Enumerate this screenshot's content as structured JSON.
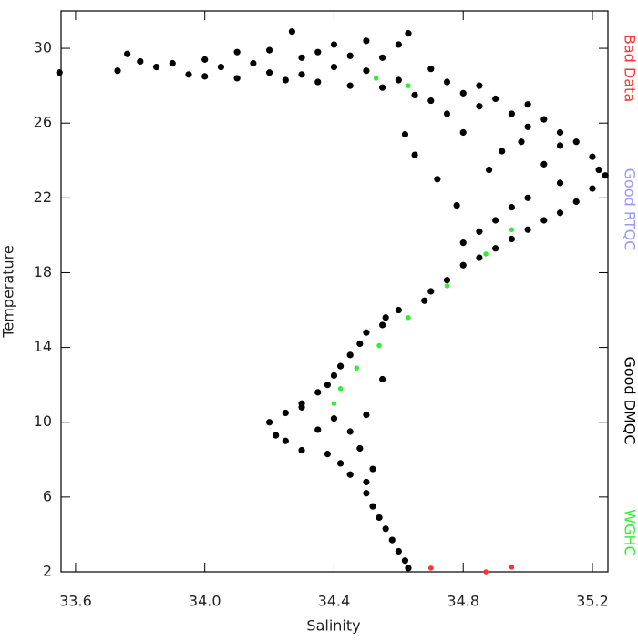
{
  "chart_data": {
    "type": "scatter",
    "x_label": "Salinity",
    "y_label": "Temperature",
    "xlim": [
      33.555,
      35.248
    ],
    "ylim": [
      2,
      32
    ],
    "xticks": [
      33.6,
      {
        "value": 34,
        "label": "34.0"
      },
      34.4,
      34.8,
      35.2
    ],
    "yticks": [
      2,
      6,
      10,
      14,
      18,
      22,
      26,
      30
    ],
    "legend": "right",
    "series": [
      {
        "name": "Bad Data",
        "color": "#ff3333",
        "x": [
          34.7,
          34.87,
          34.95
        ],
        "values": [
          2.2,
          2.0,
          2.25
        ]
      },
      {
        "name": "Good RTQC",
        "color": "#9999ff",
        "x": [],
        "values": []
      },
      {
        "name": "Good DMQC",
        "color": "#000000",
        "x": [
          33.55,
          33.73,
          33.76,
          33.8,
          33.85,
          33.9,
          33.95,
          34.0,
          34.0,
          34.05,
          34.1,
          34.1,
          34.15,
          34.2,
          34.2,
          34.25,
          34.27,
          34.3,
          34.3,
          34.35,
          34.35,
          34.4,
          34.4,
          34.45,
          34.45,
          34.5,
          34.5,
          34.55,
          34.55,
          34.6,
          34.6,
          34.63,
          34.65,
          34.7,
          34.7,
          34.75,
          34.8,
          34.85,
          34.85,
          34.9,
          34.95,
          35.0,
          35.0,
          35.05,
          35.1,
          35.1,
          35.15,
          35.2,
          35.22,
          35.24,
          35.2,
          35.15,
          35.1,
          35.1,
          35.05,
          35.05,
          35.0,
          35.0,
          34.95,
          34.95,
          34.9,
          34.9,
          34.85,
          34.85,
          34.8,
          34.8,
          34.75,
          34.78,
          34.7,
          34.72,
          34.68,
          34.65,
          34.6,
          34.62,
          34.56,
          34.55,
          34.5,
          34.48,
          34.45,
          34.42,
          34.4,
          34.38,
          34.35,
          34.3,
          34.25,
          34.2,
          34.22,
          34.25,
          34.3,
          34.3,
          34.35,
          34.38,
          34.4,
          34.42,
          34.45,
          34.45,
          34.48,
          34.5,
          34.5,
          34.52,
          34.5,
          34.52,
          34.54,
          34.56,
          34.58,
          34.6,
          34.62,
          34.63,
          34.55,
          34.88,
          34.92,
          34.98,
          34.8,
          34.75
        ],
        "values": [
          28.7,
          28.8,
          29.7,
          29.3,
          29.0,
          29.2,
          28.6,
          29.4,
          28.5,
          29.0,
          29.8,
          28.4,
          29.2,
          28.7,
          29.9,
          28.3,
          30.9,
          29.5,
          28.6,
          29.8,
          28.2,
          30.2,
          29.0,
          28.0,
          29.6,
          30.4,
          28.8,
          27.9,
          29.5,
          30.2,
          28.3,
          30.8,
          27.5,
          28.9,
          27.2,
          28.2,
          27.6,
          26.9,
          28.0,
          27.3,
          26.5,
          27.0,
          25.8,
          26.2,
          25.5,
          24.8,
          25.0,
          24.2,
          23.5,
          23.2,
          22.5,
          21.8,
          22.8,
          21.2,
          20.8,
          23.8,
          20.3,
          22.0,
          19.8,
          21.5,
          19.3,
          20.8,
          18.8,
          20.2,
          18.4,
          19.6,
          17.6,
          21.6,
          17.0,
          23.0,
          16.5,
          24.3,
          16.0,
          25.4,
          15.6,
          15.2,
          14.8,
          14.2,
          13.6,
          13.0,
          12.5,
          12.0,
          11.6,
          11.0,
          10.5,
          10.0,
          9.3,
          9.0,
          8.5,
          10.8,
          9.6,
          8.3,
          10.2,
          7.8,
          9.5,
          7.2,
          8.6,
          6.8,
          10.4,
          7.5,
          6.2,
          5.5,
          4.9,
          4.3,
          3.7,
          3.1,
          2.6,
          2.2,
          12.3,
          23.5,
          24.5,
          25.0,
          25.5,
          26.5
        ]
      },
      {
        "name": "WGHC",
        "color": "#33ee33",
        "x": [
          34.53,
          34.63,
          34.95,
          34.87,
          34.75,
          34.63,
          34.54,
          34.47,
          34.42,
          34.4
        ],
        "values": [
          28.4,
          28.0,
          20.3,
          19.0,
          17.3,
          15.6,
          14.1,
          12.9,
          11.8,
          11.0
        ]
      }
    ]
  }
}
